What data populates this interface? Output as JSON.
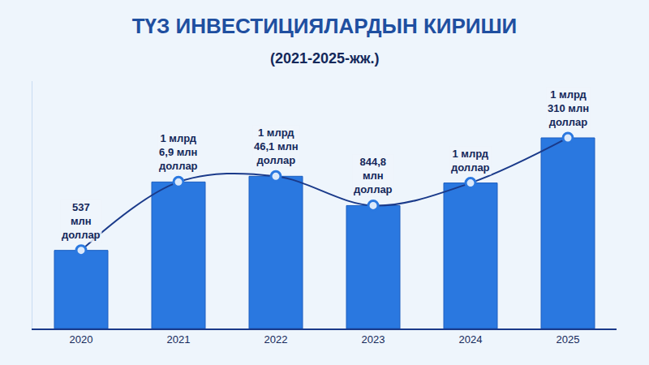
{
  "chart_data": {
    "type": "bar",
    "title": "ТҮЗ ИНВЕСТИЦИЯЛАРДЫН КИРИШИ",
    "subtitle": "(2021-2025-жж.)",
    "categories": [
      "2020",
      "2021",
      "2022",
      "2023",
      "2024",
      "2025"
    ],
    "values": [
      537,
      1006.9,
      1046.1,
      844.8,
      1000,
      1310
    ],
    "value_labels": [
      "537\nмлн\nдоллар",
      "1 млрд\n6,9 млн\nдоллар",
      "1 млрд\n46,1 млн\nдоллар",
      "844,8\nмлн\nдоллар",
      "1 млрд\nдоллар",
      "1 млрд\n310 млн\nдоллар"
    ],
    "data_labels": true,
    "color": "#2a78e0",
    "marker": "circle",
    "line_style": "solid",
    "ylim": [
      0,
      1700
    ],
    "tick_labels": "x",
    "grid": false
  }
}
